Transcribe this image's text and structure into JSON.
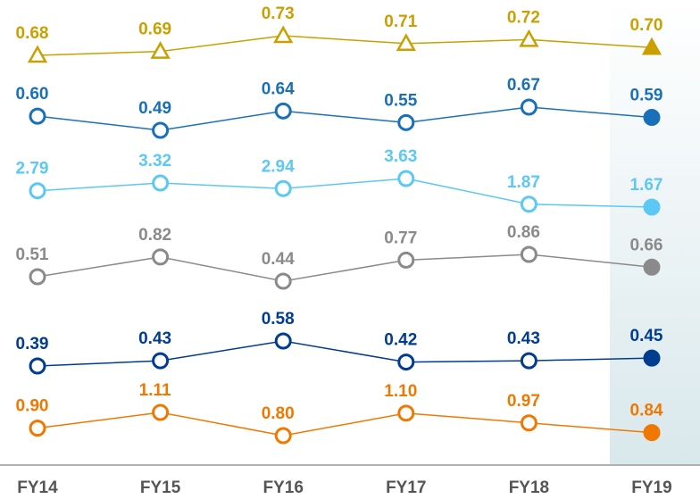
{
  "chart_data": {
    "type": "line",
    "categories": [
      "FY14",
      "FY15",
      "FY16",
      "FY17",
      "FY18",
      "FY19"
    ],
    "series": [
      {
        "color": "#c9a000",
        "marker": "triangle",
        "values": [
          0.68,
          0.69,
          0.73,
          0.71,
          0.72,
          0.7
        ],
        "value_labels": [
          "0.68",
          "0.69",
          "0.73",
          "0.71",
          "0.72",
          "0.70"
        ]
      },
      {
        "color": "#1a70b8",
        "marker": "circle",
        "values": [
          0.6,
          0.49,
          0.64,
          0.55,
          0.67,
          0.59
        ],
        "value_labels": [
          "0.60",
          "0.49",
          "0.64",
          "0.55",
          "0.67",
          "0.59"
        ]
      },
      {
        "color": "#5bc8f5",
        "marker": "circle",
        "values": [
          2.79,
          3.32,
          2.94,
          3.63,
          1.87,
          1.67
        ],
        "value_labels": [
          "2.79",
          "3.32",
          "2.94",
          "3.63",
          "1.87",
          "1.67"
        ]
      },
      {
        "color": "#8a8a8a",
        "marker": "circle",
        "values": [
          0.51,
          0.82,
          0.44,
          0.77,
          0.86,
          0.66
        ],
        "value_labels": [
          "0.51",
          "0.82",
          "0.44",
          "0.77",
          "0.86",
          "0.66"
        ]
      },
      {
        "color": "#003c8f",
        "marker": "circle",
        "values": [
          0.39,
          0.43,
          0.58,
          0.42,
          0.43,
          0.45
        ],
        "value_labels": [
          "0.39",
          "0.43",
          "0.58",
          "0.42",
          "0.43",
          "0.45"
        ]
      },
      {
        "color": "#f07800",
        "marker": "circle",
        "values": [
          0.9,
          1.11,
          0.8,
          1.1,
          0.97,
          0.84
        ],
        "value_labels": [
          "0.90",
          "1.11",
          "0.80",
          "1.10",
          "0.97",
          "0.84"
        ]
      }
    ]
  }
}
